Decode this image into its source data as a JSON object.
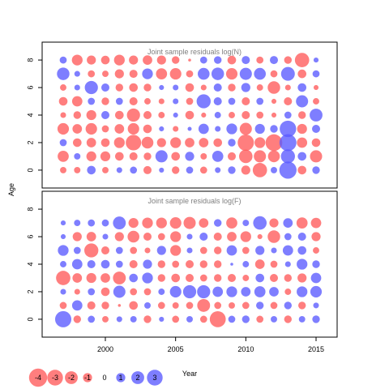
{
  "colors": {
    "negative": "#FF5A5A",
    "positive": "#5A5AFF",
    "frame": "#000000",
    "title": "#7F7F7F"
  },
  "chart_data": [
    {
      "type": "scatter",
      "subtype": "bubble",
      "title": "Joint sample residuals log(N)",
      "ylabel": "Age",
      "xlim": [
        1995.5,
        2016.5
      ],
      "ylim": [
        -1.3,
        9.3
      ],
      "yticks": [
        0,
        2,
        4,
        6,
        8
      ],
      "years": [
        1997,
        1998,
        1999,
        2000,
        2001,
        2002,
        2003,
        2004,
        2005,
        2006,
        2007,
        2008,
        2009,
        2010,
        2011,
        2012,
        2013,
        2014,
        2015
      ],
      "ages": [
        0,
        1,
        2,
        3,
        4,
        5,
        6,
        7,
        8
      ],
      "residuals": [
        [
          -0.5,
          -0.5,
          0.9,
          -0.5,
          0.4,
          0.6,
          -0.8,
          0.3,
          -0.7,
          0.6,
          -0.6,
          0.4,
          0.7,
          -1.0,
          -2.5,
          0.5,
          3.6,
          -0.9,
          0.7
        ],
        [
          -1.5,
          0.5,
          -1.2,
          -1.2,
          -0.9,
          -0.8,
          -0.7,
          1.8,
          -0.9,
          1.0,
          -0.5,
          1.5,
          -0.8,
          -2.2,
          -1.8,
          -1.7,
          2.4,
          0.9,
          -1.8
        ],
        [
          0.6,
          -0.9,
          -1.1,
          -0.9,
          -1.4,
          -2.9,
          -1.7,
          -1.0,
          -1.4,
          -1.1,
          -1.1,
          -0.9,
          0.7,
          -3.2,
          -1.4,
          -3.4,
          3.5,
          -1.3,
          -0.9
        ],
        [
          -1.6,
          -1.1,
          -1.6,
          -0.6,
          -1.1,
          -1.6,
          -0.9,
          0.3,
          -0.4,
          0.2,
          1.3,
          0.4,
          1.4,
          -1.8,
          1.2,
          0.7,
          3.3,
          -1.2,
          0.8
        ],
        [
          -0.4,
          -0.7,
          -1.2,
          0.8,
          -0.9,
          -2.1,
          -0.8,
          -0.5,
          0.3,
          -0.9,
          -0.3,
          0.5,
          -0.5,
          -0.8,
          -0.6,
          -0.3,
          0.6,
          -0.7,
          2.0
        ],
        [
          -0.9,
          -1.3,
          0.6,
          -0.7,
          0.6,
          -0.8,
          -0.5,
          -0.4,
          0.4,
          -0.6,
          2.4,
          0.8,
          0.6,
          -0.8,
          0.6,
          -0.3,
          -0.8,
          1.8,
          -0.5
        ],
        [
          -0.5,
          0.4,
          2.1,
          0.8,
          -0.7,
          -0.9,
          -0.7,
          0.3,
          0.4,
          -0.9,
          -0.4,
          0.8,
          -0.7,
          1.0,
          -0.5,
          -1.9,
          -0.4,
          0.9,
          -0.3
        ],
        [
          1.9,
          0.4,
          -0.6,
          -0.5,
          -1.0,
          -0.8,
          1.4,
          -1.5,
          -1.6,
          -0.6,
          1.7,
          1.9,
          -1.6,
          1.8,
          1.7,
          -0.6,
          2.3,
          -0.9,
          0.6
        ],
        [
          0.6,
          -1.4,
          -1.0,
          -0.9,
          -1.4,
          -1.0,
          -1.1,
          -1.0,
          -0.7,
          -0.1,
          0.6,
          0.7,
          -0.9,
          0.8,
          -0.6,
          0.8,
          -0.7,
          -2.5,
          0.3
        ]
      ]
    },
    {
      "type": "scatter",
      "subtype": "bubble",
      "title": "Joint sample residuals log(F)",
      "xlabel": "Year",
      "ylabel": "Age",
      "xlim": [
        1995.5,
        2016.5
      ],
      "ylim": [
        -1.3,
        9.3
      ],
      "xticks": [
        2000,
        2005,
        2010,
        2015
      ],
      "yticks": [
        0,
        2,
        4,
        6,
        8
      ],
      "years": [
        1997,
        1998,
        1999,
        2000,
        2001,
        2002,
        2003,
        2004,
        2005,
        2006,
        2007,
        2008,
        2009,
        2010,
        2011,
        2012,
        2013,
        2014,
        2015
      ],
      "ages": [
        0,
        1,
        2,
        3,
        4,
        5,
        6,
        7
      ],
      "residuals": [
        [
          3.2,
          -0.7,
          0.6,
          -0.5,
          0.4,
          0.5,
          -0.7,
          0.3,
          -0.6,
          0.5,
          -0.6,
          -3.1,
          0.6,
          0.7,
          -0.6,
          0.5,
          -0.7,
          0.5,
          0.7
        ],
        [
          -0.6,
          1.3,
          -0.8,
          -0.7,
          -0.1,
          -0.9,
          0.5,
          -0.6,
          -0.5,
          -0.6,
          -2.0,
          -0.6,
          -0.5,
          -0.6,
          0.7,
          -0.6,
          0.7,
          -0.7,
          0.4
        ],
        [
          0.4,
          -0.4,
          0.6,
          -0.9,
          1.8,
          -0.6,
          -0.6,
          0.5,
          1.6,
          2.1,
          2.1,
          1.3,
          1.4,
          1.1,
          1.5,
          1.1,
          -0.5,
          1.4,
          1.6
        ],
        [
          -2.5,
          -1.1,
          -1.2,
          -1.1,
          -2.0,
          0.9,
          1.4,
          -0.7,
          -0.9,
          -0.8,
          -0.6,
          -0.7,
          -0.8,
          -0.5,
          0.9,
          -0.8,
          -0.7,
          -1.0,
          1.3
        ],
        [
          0.5,
          1.3,
          0.8,
          0.9,
          0.6,
          -0.8,
          1.0,
          -0.7,
          -0.6,
          -0.8,
          -0.7,
          -0.7,
          0.1,
          0.5,
          -1.1,
          -0.6,
          0.4,
          1.4,
          0.7
        ],
        [
          1.4,
          0.6,
          -2.4,
          -0.8,
          0.6,
          -0.6,
          -0.4,
          1.0,
          -1.4,
          0.4,
          -0.6,
          -0.7,
          1.3,
          -0.6,
          1.0,
          0.4,
          1.3,
          0.9,
          -0.5
        ],
        [
          0.3,
          -1.0,
          -1.1,
          0.4,
          -1.0,
          -1.7,
          -0.8,
          -0.6,
          -1.4,
          0.4,
          0.8,
          -0.8,
          -1.1,
          -1.4,
          -0.3,
          -1.9,
          0.6,
          0.8,
          -1.0
        ],
        [
          0.3,
          0.5,
          0.6,
          0.6,
          2.0,
          -1.2,
          -1.4,
          -1.4,
          -1.6,
          -1.8,
          -1.1,
          0.7,
          -1.5,
          0.5,
          2.2,
          -1.0,
          1.1,
          -1.5,
          -1.3
        ]
      ]
    }
  ],
  "legend": {
    "values": [
      -4,
      -3,
      -2,
      -1,
      0,
      1,
      2,
      3
    ],
    "labels": [
      "-4",
      "-3",
      "-2",
      "-1",
      "0",
      "1",
      "2",
      "3"
    ]
  }
}
